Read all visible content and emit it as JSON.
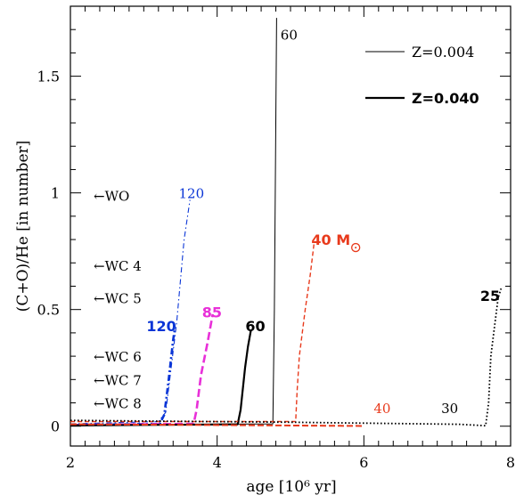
{
  "chart_data": {
    "type": "line",
    "xlabel": "age [10⁶ yr]",
    "ylabel": "(C+O)/He [in number]",
    "xlim": [
      2,
      8
    ],
    "ylim": [
      -0.085,
      1.8
    ],
    "x_ticks": [
      2,
      4,
      6,
      8
    ],
    "x_tick_labels": [
      "2",
      "4",
      "6",
      "8"
    ],
    "y_ticks": [
      0,
      0.5,
      1,
      1.5
    ],
    "y_tick_labels": [
      "0",
      "0.5",
      "1",
      "1.5"
    ],
    "grid": false,
    "legend": [
      {
        "label": "Z=0.004",
        "style": "thin"
      },
      {
        "label": "Z=0.040",
        "style": "thick"
      }
    ],
    "wc_labels": [
      {
        "text": "←WO",
        "y": 0.99
      },
      {
        "text": "←WC 4",
        "y": 0.69
      },
      {
        "text": "←WC 5",
        "y": 0.55
      },
      {
        "text": "←WC 6",
        "y": 0.3
      },
      {
        "text": "←WC 7",
        "y": 0.2
      },
      {
        "text": "←WC 8",
        "y": 0.1
      }
    ],
    "series": [
      {
        "color": "#0a35d6",
        "dash": "6 3 1.5 3",
        "width": 1.1,
        "points": [
          [
            2,
            0.01
          ],
          [
            3.2,
            0.02
          ],
          [
            3.3,
            0.06
          ],
          [
            3.45,
            0.45
          ],
          [
            3.55,
            0.8
          ],
          [
            3.63,
            0.97
          ]
        ]
      },
      {
        "color": "#0a35d6",
        "dash": "7 3 2 3",
        "width": 2.6,
        "points": [
          [
            2,
            0.005
          ],
          [
            3.22,
            0.01
          ],
          [
            3.28,
            0.05
          ],
          [
            3.34,
            0.2
          ],
          [
            3.4,
            0.37
          ],
          [
            3.42,
            0.41
          ]
        ]
      },
      {
        "color": "#e830d8",
        "dash": "9 4",
        "width": 2.6,
        "points": [
          [
            2,
            0.005
          ],
          [
            3.68,
            0.01
          ],
          [
            3.72,
            0.07
          ],
          [
            3.78,
            0.22
          ],
          [
            3.87,
            0.36
          ],
          [
            3.94,
            0.48
          ]
        ]
      },
      {
        "color": "#000000",
        "dash": "",
        "width": 2.2,
        "points": [
          [
            2,
            0.003
          ],
          [
            4.28,
            0.008
          ],
          [
            4.32,
            0.07
          ],
          [
            4.38,
            0.25
          ],
          [
            4.42,
            0.34
          ],
          [
            4.46,
            0.41
          ]
        ]
      },
      {
        "color": "#000000",
        "dash": "",
        "width": 1.0,
        "points": [
          [
            2,
            0.005
          ],
          [
            4.76,
            0.01
          ],
          [
            4.78,
            0.5
          ],
          [
            4.81,
            1.75
          ]
        ]
      },
      {
        "color": "#e83a1c",
        "dash": "5 3",
        "width": 1.4,
        "points": [
          [
            2,
            0.02
          ],
          [
            5.07,
            0.02
          ],
          [
            5.09,
            0.15
          ],
          [
            5.12,
            0.3
          ],
          [
            5.2,
            0.5
          ],
          [
            5.27,
            0.65
          ],
          [
            5.32,
            0.78
          ]
        ]
      },
      {
        "color": "#e83a1c",
        "dash": "7 3",
        "width": 2.0,
        "points": [
          [
            2,
            0.008
          ],
          [
            3.5,
            0.006
          ],
          [
            5.5,
            0.002
          ],
          [
            6.0,
            0.001
          ]
        ]
      },
      {
        "color": "#000000",
        "dash": "1.6 2.4",
        "width": 1.8,
        "points": [
          [
            2,
            0.025
          ],
          [
            5,
            0.017
          ],
          [
            7.3,
            0.008
          ],
          [
            7.66,
            0.002
          ],
          [
            7.7,
            0.1
          ],
          [
            7.73,
            0.3
          ],
          [
            7.79,
            0.45
          ],
          [
            7.83,
            0.55
          ],
          [
            7.87,
            0.59
          ]
        ]
      }
    ],
    "annotations": [
      {
        "text": "60",
        "x": 4.98,
        "y": 1.68,
        "color": "#000000",
        "bold": false
      },
      {
        "text": "120",
        "x": 3.65,
        "y": 1.0,
        "color": "#0a35d6",
        "bold": false
      },
      {
        "text": "40 M",
        "x": 5.55,
        "y": 0.8,
        "color": "#e83a1c",
        "bold": true,
        "sun": true
      },
      {
        "text": "85",
        "x": 3.93,
        "y": 0.49,
        "color": "#e830d8",
        "bold": true
      },
      {
        "text": "120",
        "x": 3.24,
        "y": 0.43,
        "color": "#0a35d6",
        "bold": true
      },
      {
        "text": "60",
        "x": 4.52,
        "y": 0.43,
        "color": "#000000",
        "bold": true
      },
      {
        "text": "25",
        "x": 7.72,
        "y": 0.56,
        "color": "#000000",
        "bold": true
      },
      {
        "text": "40",
        "x": 6.25,
        "y": 0.08,
        "color": "#e83a1c",
        "bold": false
      },
      {
        "text": "30",
        "x": 7.17,
        "y": 0.08,
        "color": "#000000",
        "bold": false
      }
    ]
  }
}
